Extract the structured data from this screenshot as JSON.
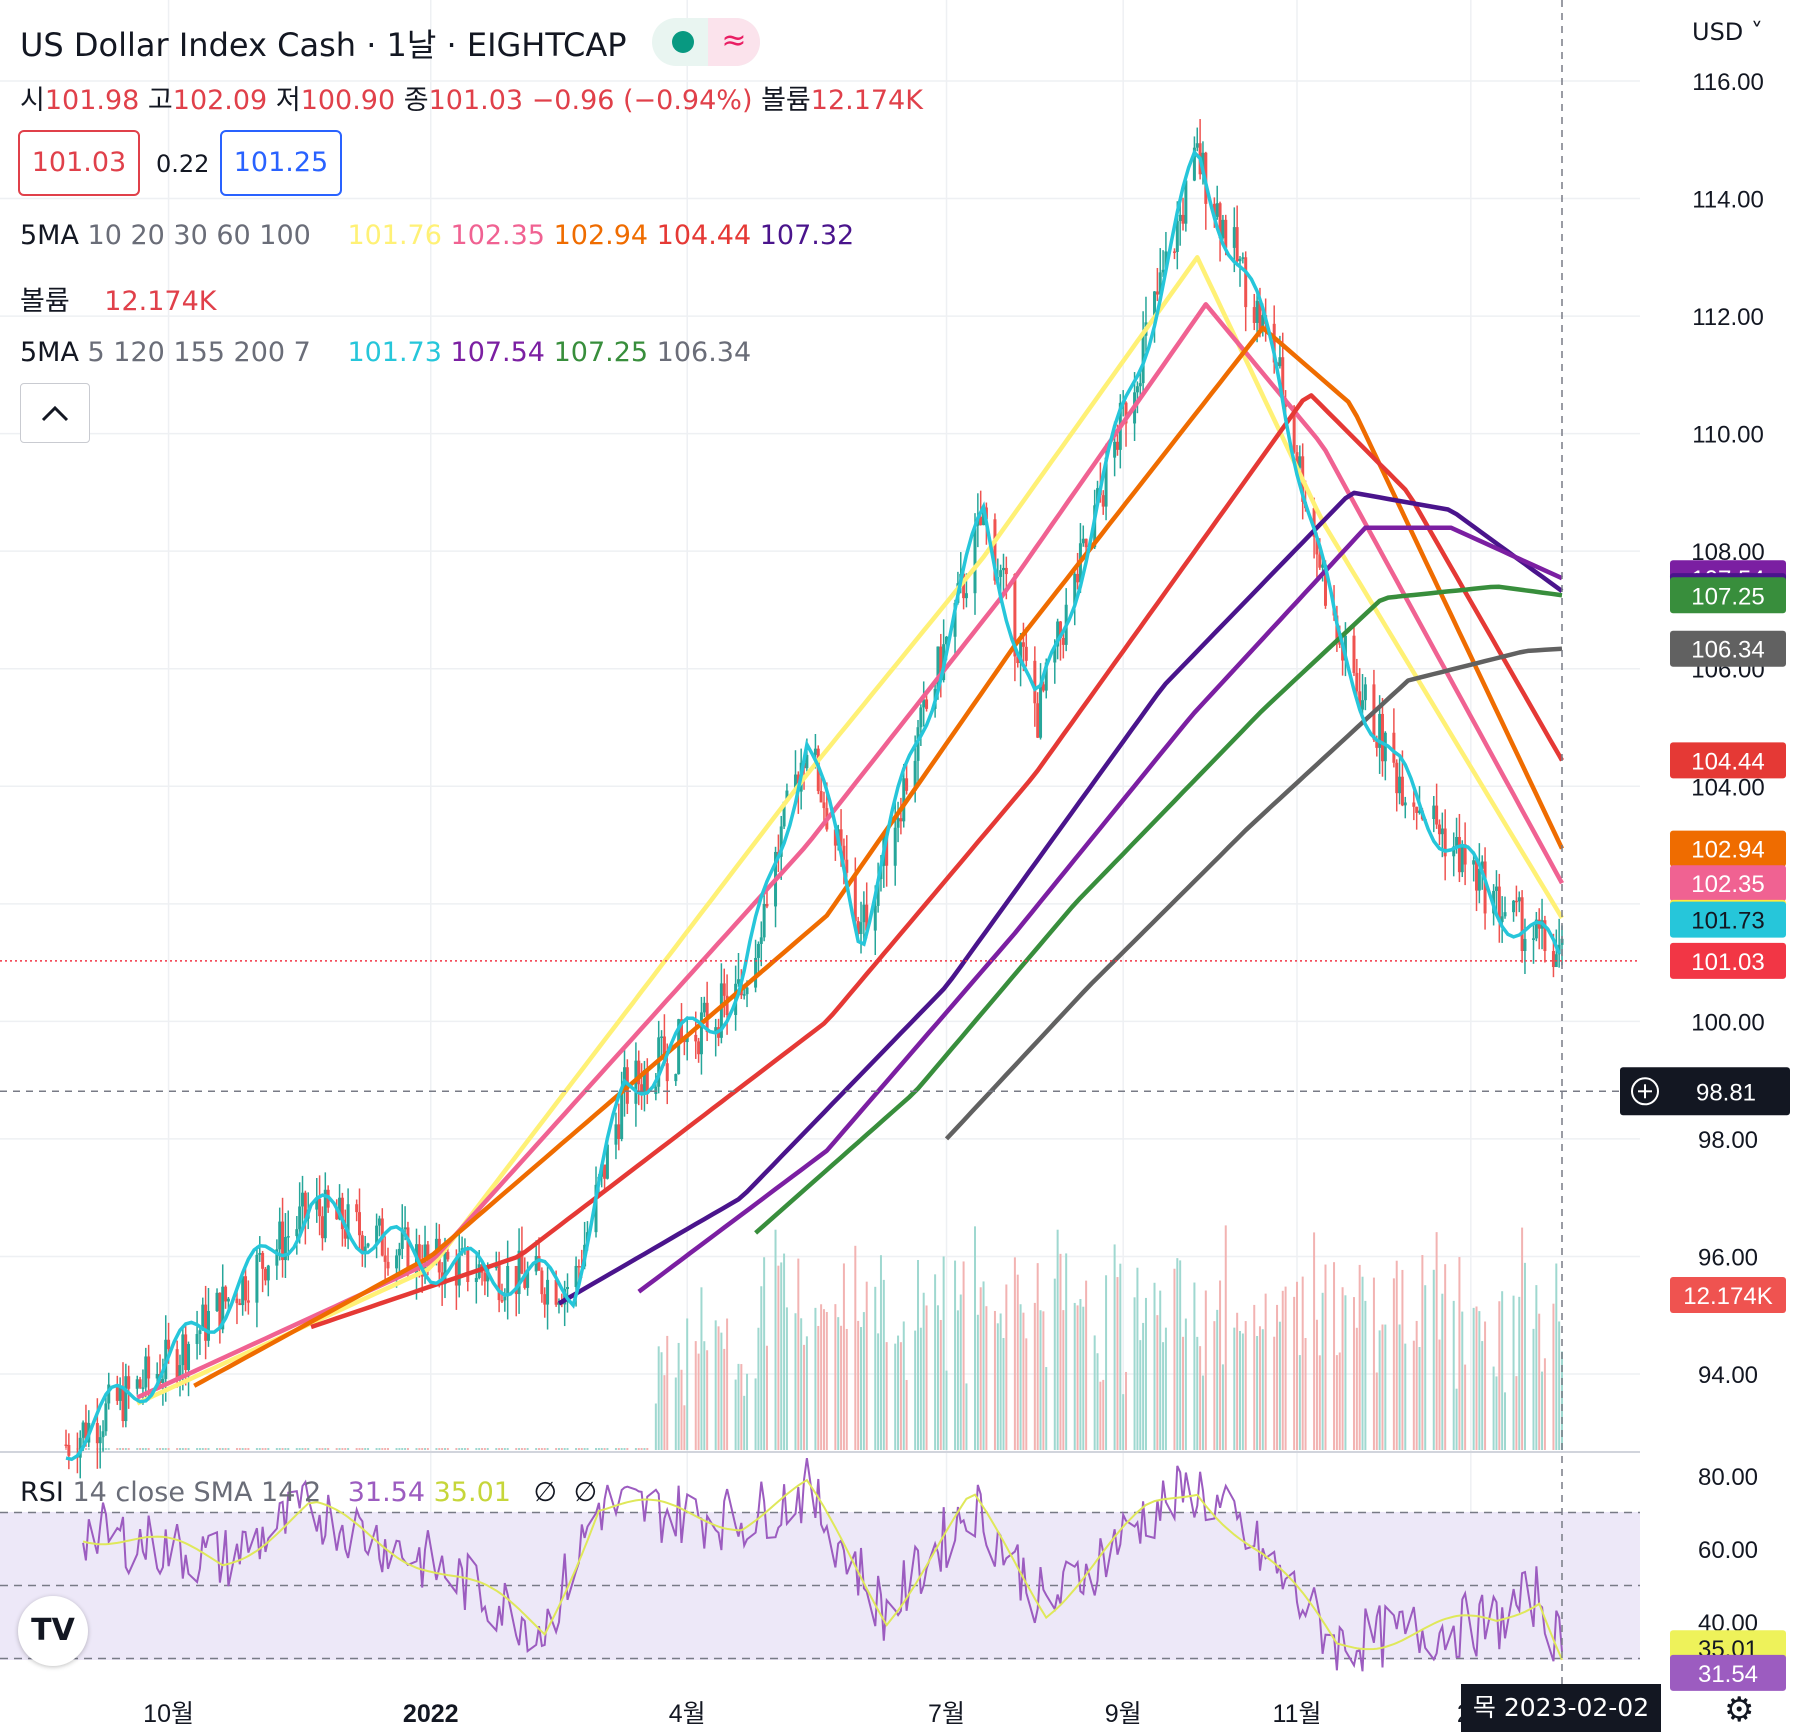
{
  "header": {
    "title": "US Dollar Index Cash · 1날 · EIGHTCAP",
    "ohlc": {
      "o_label": "시",
      "o": "101.98",
      "h_label": "고",
      "h": "102.09",
      "l_label": "저",
      "l": "100.90",
      "c_label": "종",
      "c": "101.03",
      "chg": "−0.96 (−0.94%)",
      "vol_label": "볼륨",
      "vol": "12.174K"
    },
    "bid": "101.03",
    "spread": "0.22",
    "ask": "101.25"
  },
  "indicators": {
    "ma1": {
      "label": "5MA",
      "params": "10 20 30 60 100",
      "values": [
        "101.76",
        "102.35",
        "102.94",
        "104.44",
        "107.32"
      ],
      "colors": [
        "#ffeb3b",
        "#f06292",
        "#ef6c00",
        "#e53935",
        "#4a148c"
      ]
    },
    "volume": {
      "label": "볼륨",
      "value": "12.174K"
    },
    "ma2": {
      "label": "5MA",
      "params": "5 120 155 200 7",
      "values": [
        "101.73",
        "107.54",
        "107.25",
        "106.34"
      ],
      "colors": [
        "#26c6da",
        "#7b1fa2",
        "#388e3c",
        "#616161"
      ]
    },
    "rsi": {
      "label": "RSI",
      "params": "14 close SMA 14 2",
      "value": "31.54",
      "sma": "35.01",
      "extra1": "∅",
      "extra2": "∅"
    }
  },
  "controls": {
    "currency": "USD",
    "collapse_icon": "chevron-up-icon",
    "crosshair_price": "98.81",
    "crosshair_date": "목 2023-02-02",
    "settings_icon": "gear-icon",
    "logo": "TV"
  },
  "colors": {
    "up": "#26a69a",
    "down": "#ef5350",
    "last": "#f23645",
    "grid": "#eef0f3"
  },
  "chart_data": {
    "type": "line",
    "price_axis": {
      "ticks": [
        "116.00",
        "114.00",
        "112.00",
        "110.00",
        "108.00",
        "106.00",
        "104.00",
        "102.00",
        "100.00",
        "98.00",
        "96.00",
        "94.00"
      ],
      "range": [
        92.5,
        116.8
      ]
    },
    "rsi_axis": {
      "ticks": [
        "80.00",
        "60.00",
        "40.00"
      ],
      "range": [
        30,
        80
      ],
      "band": [
        30,
        70
      ]
    },
    "time_axis": {
      "labels": [
        "10월",
        "2022",
        "4월",
        "7월",
        "9월",
        "11월",
        "20"
      ]
    },
    "series": [
      {
        "name": "price",
        "x": [
          "2021-08-26",
          "2021-10-01",
          "2021-11-20",
          "2022-01-01",
          "2022-02-20",
          "2022-03-10",
          "2022-04-20",
          "2022-05-13",
          "2022-06-01",
          "2022-07-14",
          "2022-08-02",
          "2022-09-27",
          "2022-10-25",
          "2022-11-15",
          "2022-12-05",
          "2023-01-10",
          "2023-02-02"
        ],
        "values": [
          92.8,
          94.2,
          96.8,
          95.9,
          95.5,
          98.8,
          100.5,
          104.8,
          101.5,
          108.6,
          105.2,
          114.7,
          111.2,
          106.5,
          104.3,
          102.0,
          101.03
        ]
      },
      {
        "name": "MA10",
        "x": [
          "2021-09-20",
          "2022-01-01",
          "2022-05-13",
          "2022-07-14",
          "2022-09-27",
          "2022-11-10",
          "2023-02-02"
        ],
        "values": [
          93.5,
          95.8,
          104.2,
          107.9,
          113.0,
          108.5,
          101.76
        ]
      },
      {
        "name": "MA20",
        "x": [
          "2021-09-20",
          "2022-01-01",
          "2022-05-13",
          "2022-07-20",
          "2022-09-30",
          "2022-11-10",
          "2023-02-02"
        ],
        "values": [
          93.6,
          95.9,
          103.0,
          107.2,
          112.2,
          109.8,
          102.35
        ]
      },
      {
        "name": "MA30",
        "x": [
          "2021-10-10",
          "2022-01-01",
          "2022-05-20",
          "2022-07-25",
          "2022-10-20",
          "2022-11-20",
          "2023-02-02"
        ],
        "values": [
          93.8,
          96.0,
          101.8,
          106.4,
          111.8,
          110.5,
          102.94
        ]
      },
      {
        "name": "MA60",
        "x": [
          "2021-11-20",
          "2022-02-01",
          "2022-05-20",
          "2022-08-01",
          "2022-11-05",
          "2022-12-10",
          "2023-02-02"
        ],
        "values": [
          94.8,
          96.0,
          100.0,
          104.2,
          110.7,
          109.0,
          104.44
        ]
      },
      {
        "name": "MA100",
        "x": [
          "2022-02-15",
          "2022-04-20",
          "2022-07-01",
          "2022-09-15",
          "2022-11-20",
          "2022-12-25",
          "2023-02-02"
        ],
        "values": [
          95.2,
          97.0,
          100.6,
          105.7,
          109.0,
          108.7,
          107.32
        ]
      },
      {
        "name": "MA120",
        "x": [
          "2022-03-15",
          "2022-05-20",
          "2022-07-25",
          "2022-09-25",
          "2022-11-25",
          "2022-12-25",
          "2023-02-02"
        ],
        "values": [
          95.4,
          97.8,
          101.5,
          105.2,
          108.4,
          108.4,
          107.54
        ]
      },
      {
        "name": "MA155",
        "x": [
          "2022-04-25",
          "2022-06-20",
          "2022-08-15",
          "2022-10-20",
          "2022-12-01",
          "2023-01-10",
          "2023-02-02"
        ],
        "values": [
          96.4,
          98.8,
          102.0,
          105.3,
          107.2,
          107.4,
          107.25
        ]
      },
      {
        "name": "MA200",
        "x": [
          "2022-07-01",
          "2022-08-20",
          "2022-10-15",
          "2022-12-10",
          "2023-01-20",
          "2023-02-02"
        ],
        "values": [
          98.0,
          100.6,
          103.3,
          105.8,
          106.3,
          106.34
        ]
      }
    ],
    "rsi": {
      "x": [
        "2021-09-01",
        "2021-10-20",
        "2021-11-20",
        "2022-01-01",
        "2022-02-10",
        "2022-03-01",
        "2022-04-20",
        "2022-05-13",
        "2022-06-10",
        "2022-07-10",
        "2022-08-05",
        "2022-09-10",
        "2022-09-27",
        "2022-10-20",
        "2022-11-15",
        "2022-12-10",
        "2023-01-10",
        "2023-01-25",
        "2023-02-02"
      ],
      "values": [
        65,
        57,
        71,
        56,
        38,
        72,
        68,
        76,
        42,
        73,
        44,
        70,
        77,
        58,
        34,
        37,
        40,
        48,
        31.54
      ]
    }
  }
}
